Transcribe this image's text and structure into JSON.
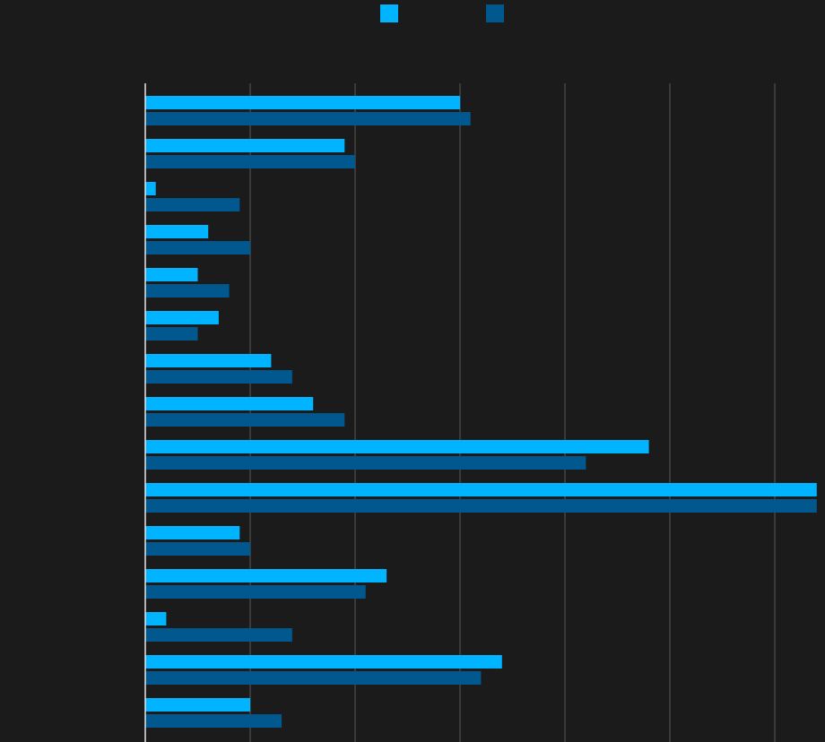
{
  "chart_data": {
    "type": "bar",
    "orientation": "horizontal",
    "categories": [
      "",
      "",
      "",
      "",
      "",
      "",
      "",
      "",
      "",
      "",
      "",
      "",
      "",
      "",
      ""
    ],
    "series": [
      {
        "values": [
          30,
          19,
          1,
          6,
          5,
          7,
          12,
          16,
          48,
          64,
          9,
          23,
          2,
          34,
          10
        ]
      },
      {
        "values": [
          31,
          20,
          9,
          10,
          8,
          5,
          14,
          19,
          42,
          64,
          10,
          21,
          14,
          32,
          13
        ]
      }
    ],
    "title": "",
    "xlabel": "",
    "ylabel": "",
    "xlim": [
      0,
      65
    ],
    "grid": true,
    "legend_position": "top-center"
  },
  "colors": {
    "background": "#1b1b1b",
    "series": [
      "#00b4ff",
      "#00588f"
    ],
    "grid": "#5a5a5a",
    "axis": "#e8e8e8"
  }
}
